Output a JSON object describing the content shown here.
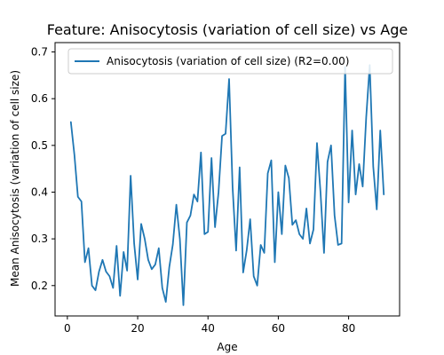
{
  "chart_data": {
    "type": "line",
    "title": "Feature: Anisocytosis (variation of cell size) vs Age",
    "xlabel": "Age",
    "ylabel": "Mean Anisocytosis (variation of cell size)",
    "xlim": [
      -3.5,
      94.5
    ],
    "ylim": [
      0.135,
      0.72
    ],
    "xticks": [
      0,
      20,
      40,
      60,
      80
    ],
    "yticks": [
      0.2,
      0.3,
      0.4,
      0.5,
      0.6,
      0.7
    ],
    "xtick_labels": [
      "0",
      "20",
      "40",
      "60",
      "80"
    ],
    "ytick_labels": [
      "0.2",
      "0.3",
      "0.4",
      "0.5",
      "0.6",
      "0.7"
    ],
    "legend_position": "top-right",
    "colors": {
      "line": "#1f77b4",
      "axes": "#000000",
      "legend_border": "#cccccc"
    },
    "series": [
      {
        "name": "Anisocytosis (variation of cell size) (R2=0.00)",
        "x": [
          1,
          2,
          3,
          4,
          5,
          6,
          7,
          8,
          9,
          10,
          11,
          12,
          13,
          14,
          15,
          16,
          17,
          18,
          19,
          20,
          21,
          22,
          23,
          24,
          25,
          26,
          27,
          28,
          29,
          30,
          31,
          32,
          33,
          34,
          35,
          36,
          37,
          38,
          39,
          40,
          41,
          42,
          43,
          44,
          45,
          46,
          47,
          48,
          49,
          50,
          51,
          52,
          53,
          54,
          55,
          56,
          57,
          58,
          59,
          60,
          61,
          62,
          63,
          64,
          65,
          66,
          67,
          68,
          69,
          70,
          71,
          72,
          73,
          74,
          75,
          76,
          77,
          78,
          79,
          80,
          81,
          82,
          83,
          84,
          85,
          86,
          87,
          88,
          89,
          90
        ],
        "y": [
          0.55,
          0.48,
          0.39,
          0.38,
          0.25,
          0.28,
          0.2,
          0.19,
          0.23,
          0.255,
          0.23,
          0.22,
          0.195,
          0.285,
          0.178,
          0.272,
          0.232,
          0.435,
          0.29,
          0.213,
          0.332,
          0.3,
          0.255,
          0.235,
          0.245,
          0.28,
          0.195,
          0.165,
          0.24,
          0.288,
          0.373,
          0.3,
          0.158,
          0.335,
          0.35,
          0.395,
          0.38,
          0.485,
          0.31,
          0.315,
          0.473,
          0.325,
          0.4,
          0.52,
          0.525,
          0.642,
          0.41,
          0.275,
          0.453,
          0.228,
          0.275,
          0.342,
          0.22,
          0.2,
          0.287,
          0.27,
          0.44,
          0.468,
          0.25,
          0.4,
          0.31,
          0.457,
          0.43,
          0.33,
          0.34,
          0.31,
          0.3,
          0.365,
          0.29,
          0.32,
          0.505,
          0.4,
          0.27,
          0.465,
          0.5,
          0.35,
          0.287,
          0.29,
          0.668,
          0.378,
          0.532,
          0.395,
          0.46,
          0.412,
          0.56,
          0.672,
          0.455,
          0.363,
          0.532,
          0.395
        ]
      }
    ]
  }
}
